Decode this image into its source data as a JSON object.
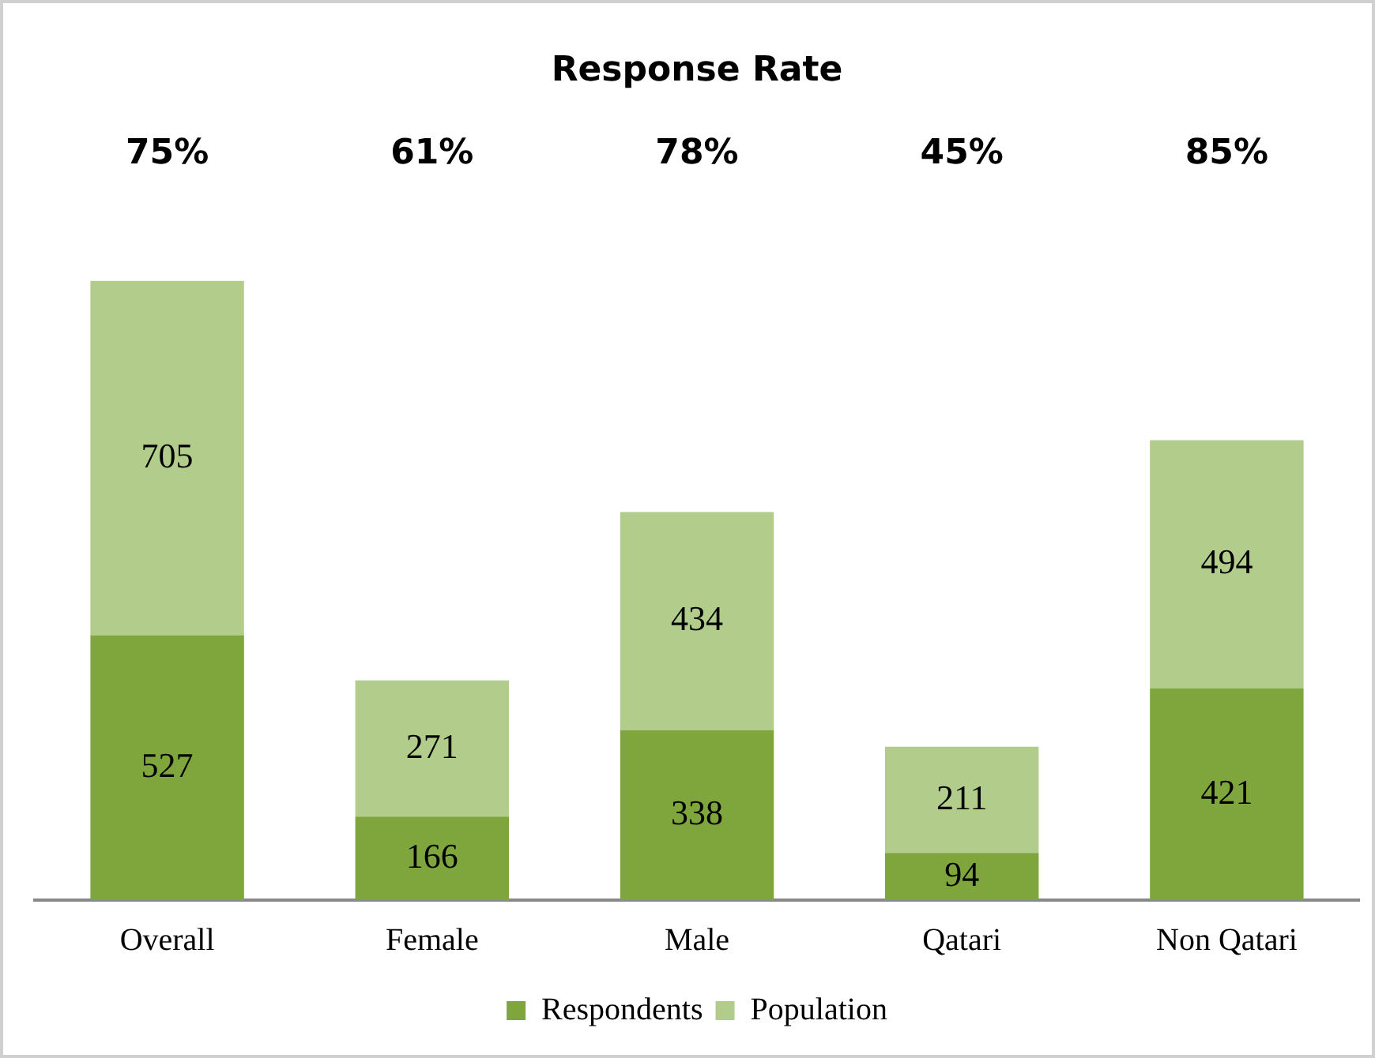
{
  "chart_data": {
    "type": "bar",
    "title": "Response Rate",
    "stacked": true,
    "data_labels": true,
    "legend": "bottom",
    "grid": false,
    "categories": [
      "Overall",
      "Female",
      "Male",
      "Qatari",
      "Non Qatari"
    ],
    "series": [
      {
        "name": "Respondents",
        "color": "#7ea63c",
        "values": [
          527,
          166,
          338,
          94,
          421
        ]
      },
      {
        "name": "Population",
        "color": "#b2cd8b",
        "values": [
          705,
          271,
          434,
          211,
          494
        ]
      }
    ],
    "annotations": [
      "75%",
      "61%",
      "78%",
      "45%",
      "85%"
    ]
  }
}
